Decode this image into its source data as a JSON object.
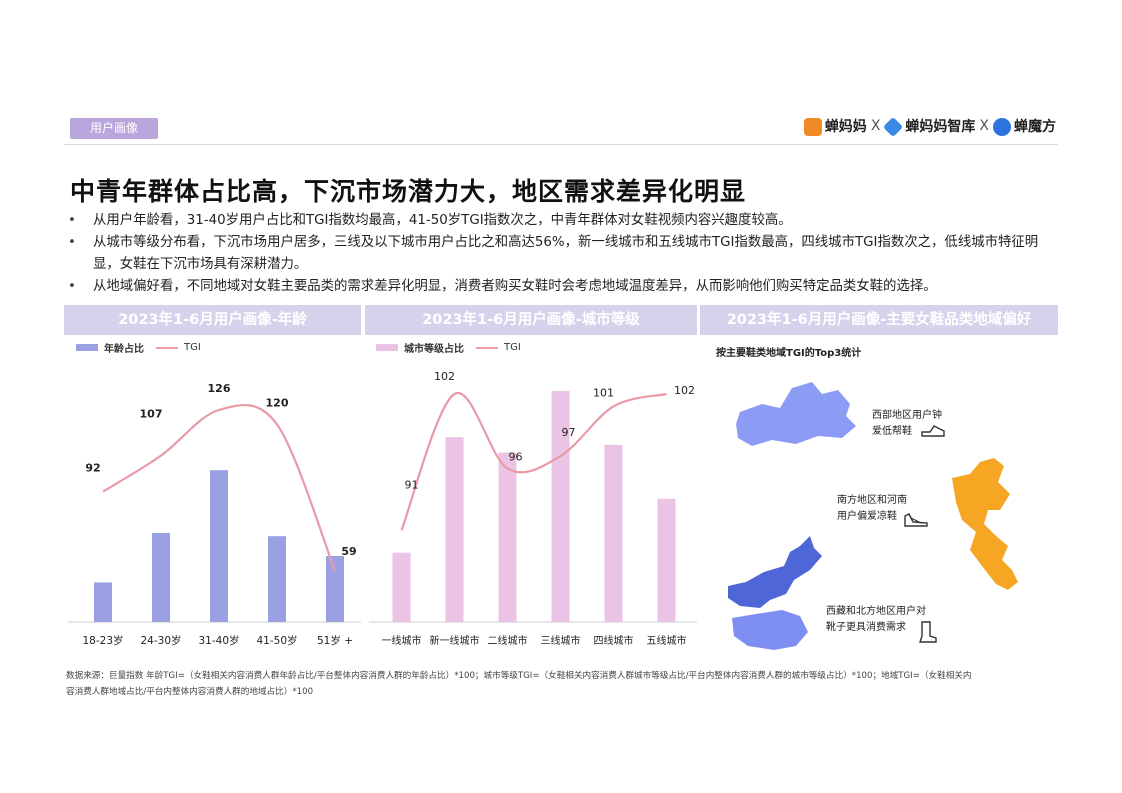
{
  "tag": "用户画像",
  "logos": [
    {
      "name": "蝉妈妈",
      "color": "#f08a24"
    },
    {
      "name": "蝉妈妈智库",
      "color": "#3a88e8"
    },
    {
      "name": "蝉魔方",
      "color": "#2d73e0"
    }
  ],
  "logo_sep": "X",
  "title": "中青年群体占比高，下沉市场潜力大，地区需求差异化明显",
  "bullets": [
    "从用户年龄看，31-40岁用户占比和TGI指数均最高，41-50岁TGI指数次之，中青年群体对女鞋视频内容兴趣度较高。",
    "从城市等级分布看，下沉市场用户居多，三线及以下城市用户占比之和高达56%，新一线城市和五线城市TGI指数最高，四线城市TGI指数次之，低线城市特征明显，女鞋在下沉市场具有深耕潜力。",
    "从地域偏好看，不同地域对女鞋主要品类的需求差异化明显，消费者购买女鞋时会考虑地域温度差异，从而影响他们购买特定品类女鞋的选择。"
  ],
  "panels": {
    "age_title": "2023年1-6月用户画像-年龄",
    "city_title": "2023年1-6月用户画像-城市等级",
    "map_title": "2023年1-6月用户画像-主要女鞋品类地域偏好"
  },
  "map": {
    "subtitle": "按主要鞋类地域TGI的Top3统计",
    "labels": {
      "west_1": "西部地区用户钟",
      "west_2": "爱低帮鞋",
      "south_1": "南方地区和河南",
      "south_2": "用户偏爱凉鞋",
      "north_1": "西藏和北方地区用户对",
      "north_2": "靴子更具消费需求"
    },
    "icons": [
      "low-top-shoe-icon",
      "sandal-icon",
      "boot-icon"
    ]
  },
  "colors": {
    "age_bar": "#9aa0e2",
    "city_bar": "#ebc3e4",
    "tgi_line": "#e99aa6",
    "map_blue": "#7d8ff2",
    "map_orange": "#f6a623"
  },
  "chart_data": [
    {
      "type": "bar",
      "title": "2023年1-6月用户画像-年龄",
      "categories": [
        "18-23岁",
        "24-30岁",
        "31-40岁",
        "41-50岁",
        "51岁 +"
      ],
      "series": [
        {
          "name": "年龄占比",
          "values": [
            12,
            27,
            46,
            26,
            20
          ]
        },
        {
          "name": "TGI",
          "values": [
            92,
            107,
            126,
            120,
            59
          ],
          "type": "line"
        }
      ],
      "grid": false,
      "legend": "top-left"
    },
    {
      "type": "bar",
      "title": "2023年1-6月用户画像-城市等级",
      "categories": [
        "一线城市",
        "新一线城市",
        "二线城市",
        "三线城市",
        "四线城市",
        "五线城市"
      ],
      "series": [
        {
          "name": "城市等级占比",
          "values": [
            9,
            24,
            22,
            30,
            23,
            16
          ]
        },
        {
          "name": "TGI",
          "values": [
            91,
            102,
            96,
            97,
            101,
            102
          ],
          "type": "line"
        }
      ],
      "grid": false,
      "legend": "top-left"
    }
  ],
  "footnote": {
    "line1": "数据来源：巨量指数      年龄TGI=（女鞋相关内容消费人群年龄占比/平台整体内容消费人群的年龄占比）*100；城市等级TGI=（女鞋相关内容消费人群城市等级占比/平台内整体内容消费人群的城市等级占比）*100；地域TGI=（女鞋相关内",
    "line2": "容消费人群地域占比/平台内整体内容消费人群的地域占比）*100"
  }
}
